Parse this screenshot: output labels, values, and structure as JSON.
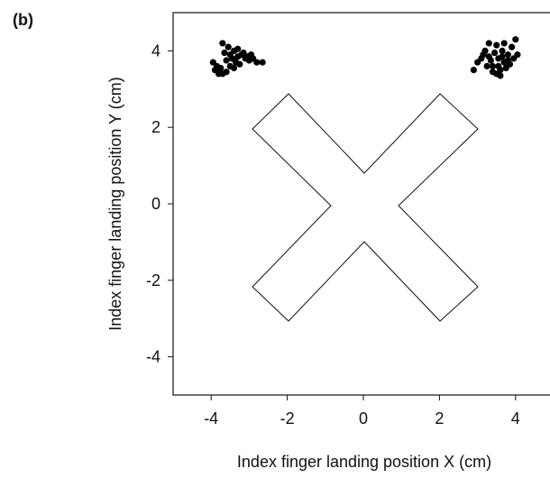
{
  "chart_data": {
    "type": "scatter",
    "title": "(b)",
    "x_label": "Index finger landing position X (cm)",
    "y_label": "Index finger landing position Y (cm)",
    "xlim": [
      -5,
      5
    ],
    "ylim": [
      -5,
      5
    ],
    "xticks": [
      -4,
      -2,
      0,
      2,
      4
    ],
    "yticks": [
      -4,
      -2,
      0,
      2,
      4
    ],
    "series": [
      {
        "color": "#000000",
        "x": [
          -3.9,
          -3.8,
          -3.7,
          -3.6,
          -3.85,
          -3.75,
          -3.5,
          -3.6,
          -3.45,
          -3.3,
          -3.2,
          -3.1,
          -3.0,
          -2.9,
          -2.8,
          -2.65,
          -3.4,
          -3.55,
          -3.7,
          -3.35,
          -3.25,
          -3.15,
          -3.05,
          -3.5,
          -3.95,
          -3.65,
          -3.3,
          -3.8,
          -3.4,
          -2.95,
          2.9,
          3.0,
          3.1,
          3.2,
          3.3,
          3.4,
          3.5,
          3.6,
          3.7,
          3.8,
          3.9,
          4.0,
          3.55,
          3.45,
          3.65,
          3.75,
          3.35,
          3.25,
          3.85,
          3.95,
          3.5,
          3.6,
          3.15,
          3.7,
          4.05,
          3.4,
          3.8,
          3.3,
          3.55,
          3.65
        ],
        "y": [
          3.5,
          3.45,
          3.4,
          3.45,
          3.6,
          3.55,
          3.6,
          3.75,
          3.8,
          3.85,
          3.9,
          3.8,
          3.75,
          3.8,
          3.7,
          3.7,
          4.0,
          4.1,
          4.2,
          3.7,
          3.65,
          3.95,
          3.85,
          3.9,
          3.7,
          3.95,
          4.05,
          3.4,
          3.55,
          3.9,
          3.5,
          3.7,
          3.8,
          4.0,
          4.2,
          3.6,
          3.4,
          3.5,
          3.7,
          3.9,
          4.1,
          4.3,
          3.8,
          3.95,
          4.0,
          3.55,
          3.75,
          3.6,
          3.65,
          3.8,
          4.15,
          3.35,
          3.9,
          4.2,
          3.9,
          3.45,
          3.75,
          3.85,
          3.6,
          3.85
        ]
      }
    ]
  }
}
